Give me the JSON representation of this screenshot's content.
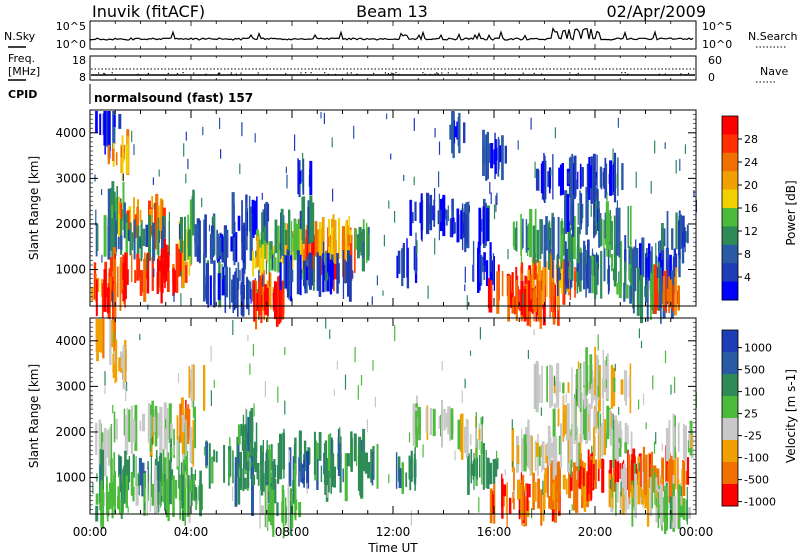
{
  "header": {
    "station": "Inuvik (fitACF)",
    "beam": "Beam 13",
    "date": "02/Apr/2009"
  },
  "top_panel": {
    "left_label": "N.Sky",
    "right_label": "N.Search",
    "left_ticks": [
      "10^5",
      "10^0"
    ],
    "right_ticks": [
      "10^5",
      "10^0"
    ]
  },
  "freq_panel": {
    "left_label_1": "Freq.",
    "left_label_2": "[MHz]",
    "right_label": "Nave",
    "left_ticks": [
      "18",
      "8"
    ],
    "right_ticks": [
      "60",
      "0"
    ]
  },
  "cpid": {
    "label": "CPID",
    "value": "normalsound (fast) 157"
  },
  "chart_data": [
    {
      "type": "heatmap",
      "title": "",
      "xlabel": "Time UT",
      "ylabel": "Slant Range [km]",
      "x_ticks": [
        "00:00",
        "04:00",
        "08:00",
        "12:00",
        "16:00",
        "20:00",
        "00:00"
      ],
      "y_ticks": [
        "1000",
        "2000",
        "3000",
        "4000"
      ],
      "ylim": [
        200,
        4500
      ],
      "colorbar": {
        "label": "Power [dB]",
        "ticks": [
          "4",
          "8",
          "12",
          "16",
          "20",
          "24",
          "28"
        ],
        "colors": [
          "#0000ff",
          "#1e3cb4",
          "#2a5aa6",
          "#2e8b57",
          "#4cbb3c",
          "#f0d000",
          "#f0a000",
          "#f07000",
          "#ff3000",
          "#ff0000"
        ]
      },
      "blobs": [
        {
          "t": 0.7,
          "r": 4200,
          "dt": 0.5,
          "dr": 80,
          "v": 5
        },
        {
          "t": 1.1,
          "r": 3500,
          "dt": 0.4,
          "dr": 100,
          "v": 20
        },
        {
          "t": 1.0,
          "r": 2200,
          "dt": 0.4,
          "dr": 200,
          "v": 12
        },
        {
          "t": 2.0,
          "r": 2050,
          "dt": 0.9,
          "dr": 120,
          "v": 22
        },
        {
          "t": 0.6,
          "r": 1650,
          "dt": 0.4,
          "dr": 120,
          "v": 12
        },
        {
          "t": 2.0,
          "r": 1650,
          "dt": 1.2,
          "dr": 100,
          "v": 10
        },
        {
          "t": 2.3,
          "r": 950,
          "dt": 1.5,
          "dr": 250,
          "v": 27
        },
        {
          "t": 0.7,
          "r": 650,
          "dt": 0.7,
          "dr": 220,
          "v": 24
        },
        {
          "t": 0.6,
          "r": 400,
          "dt": 0.4,
          "dr": 150,
          "v": 28
        },
        {
          "t": 3.8,
          "r": 1200,
          "dt": 0.2,
          "dr": 600,
          "v": 20
        },
        {
          "t": 3.8,
          "r": 2000,
          "dt": 0.3,
          "dr": 450,
          "v": 14
        },
        {
          "t": 4.5,
          "r": 1700,
          "dt": 0.4,
          "dr": 100,
          "v": 8
        },
        {
          "t": 5.5,
          "r": 1500,
          "dt": 0.8,
          "dr": 80,
          "v": 6
        },
        {
          "t": 6.3,
          "r": 2100,
          "dt": 0.7,
          "dr": 150,
          "v": 6
        },
        {
          "t": 6.5,
          "r": 1600,
          "dt": 0.4,
          "dr": 200,
          "v": 12
        },
        {
          "t": 7.0,
          "r": 1300,
          "dt": 0.6,
          "dr": 200,
          "v": 16
        },
        {
          "t": 8.0,
          "r": 1400,
          "dt": 0.6,
          "dr": 250,
          "v": 20
        },
        {
          "t": 9.0,
          "r": 1300,
          "dt": 0.6,
          "dr": 260,
          "v": 26
        },
        {
          "t": 10.0,
          "r": 1250,
          "dt": 0.5,
          "dr": 220,
          "v": 24
        },
        {
          "t": 9.7,
          "r": 1650,
          "dt": 0.8,
          "dr": 100,
          "v": 20
        },
        {
          "t": 7.8,
          "r": 1700,
          "dt": 0.5,
          "dr": 120,
          "v": 12
        },
        {
          "t": 10.8,
          "r": 1550,
          "dt": 0.4,
          "dr": 150,
          "v": 12
        },
        {
          "t": 5.2,
          "r": 700,
          "dt": 0.8,
          "dr": 180,
          "v": 7
        },
        {
          "t": 6.0,
          "r": 450,
          "dt": 0.7,
          "dr": 100,
          "v": 8
        },
        {
          "t": 7.0,
          "r": 500,
          "dt": 0.6,
          "dr": 200,
          "v": 24
        },
        {
          "t": 7.0,
          "r": 280,
          "dt": 0.6,
          "dr": 80,
          "v": 28
        },
        {
          "t": 9.0,
          "r": 900,
          "dt": 1.5,
          "dr": 100,
          "v": 7
        },
        {
          "t": 8.5,
          "r": 2100,
          "dt": 0.3,
          "dr": 60,
          "v": 8
        },
        {
          "t": 8.5,
          "r": 3000,
          "dt": 0.3,
          "dr": 60,
          "v": 6
        },
        {
          "t": 12.5,
          "r": 1150,
          "dt": 0.4,
          "dr": 150,
          "v": 6
        },
        {
          "t": 13.5,
          "r": 2200,
          "dt": 0.9,
          "dr": 80,
          "v": 6
        },
        {
          "t": 15.0,
          "r": 1950,
          "dt": 0.8,
          "dr": 70,
          "v": 7
        },
        {
          "t": 15.6,
          "r": 1050,
          "dt": 0.5,
          "dr": 150,
          "v": 6
        },
        {
          "t": 16.8,
          "r": 500,
          "dt": 1.1,
          "dr": 230,
          "v": 28
        },
        {
          "t": 17.5,
          "r": 300,
          "dt": 1.0,
          "dr": 100,
          "v": 26
        },
        {
          "t": 18.3,
          "r": 800,
          "dt": 1.0,
          "dr": 220,
          "v": 22
        },
        {
          "t": 19.0,
          "r": 1000,
          "dt": 0.8,
          "dr": 150,
          "v": 10
        },
        {
          "t": 20.8,
          "r": 1050,
          "dt": 1.8,
          "dr": 250,
          "v": 10
        },
        {
          "t": 22.5,
          "r": 1050,
          "dt": 0.8,
          "dr": 120,
          "v": 6
        },
        {
          "t": 22.0,
          "r": 500,
          "dt": 1.2,
          "dr": 180,
          "v": 12
        },
        {
          "t": 22.8,
          "r": 450,
          "dt": 0.5,
          "dr": 120,
          "v": 24
        },
        {
          "t": 18.0,
          "r": 1650,
          "dt": 1.3,
          "dr": 150,
          "v": 12
        },
        {
          "t": 20.7,
          "r": 1850,
          "dt": 0.7,
          "dr": 150,
          "v": 12
        },
        {
          "t": 23.2,
          "r": 1750,
          "dt": 0.6,
          "dr": 100,
          "v": 8
        },
        {
          "t": 19.5,
          "r": 2250,
          "dt": 0.9,
          "dr": 80,
          "v": 8
        },
        {
          "t": 19.3,
          "r": 3000,
          "dt": 1.8,
          "dr": 50,
          "v": 6
        },
        {
          "t": 16.0,
          "r": 3500,
          "dt": 0.5,
          "dr": 60,
          "v": 6
        },
        {
          "t": 14.5,
          "r": 4000,
          "dt": 0.3,
          "dr": 60,
          "v": 6
        }
      ]
    },
    {
      "type": "heatmap",
      "title": "",
      "xlabel": "Time UT",
      "ylabel": "Slant Range [km]",
      "x_ticks": [
        "00:00",
        "04:00",
        "08:00",
        "12:00",
        "16:00",
        "20:00",
        "00:00"
      ],
      "y_ticks": [
        "1000",
        "2000",
        "3000",
        "4000"
      ],
      "ylim": [
        200,
        4500
      ],
      "colorbar": {
        "label": "Velocity [m s-1]",
        "ticks": [
          "1000",
          "500",
          "100",
          "25",
          "-25",
          "-100",
          "-500",
          "-1000"
        ],
        "colors": [
          "#1e3cb4",
          "#2a5aa6",
          "#2e8b57",
          "#4cbb3c",
          "#c8c8c8",
          "#f0a000",
          "#f07000",
          "#ff0000"
        ]
      },
      "blobs": [
        {
          "t": 0.6,
          "r": 4200,
          "dt": 0.4,
          "dr": 80,
          "v": 5
        },
        {
          "t": 1.1,
          "r": 3500,
          "dt": 0.4,
          "dr": 90,
          "v": 5
        },
        {
          "t": 2.0,
          "r": 2100,
          "dt": 1.2,
          "dr": 150,
          "v": 4
        },
        {
          "t": 0.6,
          "r": 1700,
          "dt": 0.4,
          "dr": 150,
          "v": 4
        },
        {
          "t": 1.8,
          "r": 1050,
          "dt": 1.5,
          "dr": 220,
          "v": 2
        },
        {
          "t": 2.5,
          "r": 650,
          "dt": 2.0,
          "dr": 200,
          "v": 3
        },
        {
          "t": 0.6,
          "r": 400,
          "dt": 0.5,
          "dr": 200,
          "v": 3
        },
        {
          "t": 3.5,
          "r": 1400,
          "dt": 0.5,
          "dr": 400,
          "v": 3
        },
        {
          "t": 3.8,
          "r": 2300,
          "dt": 0.3,
          "dr": 150,
          "v": 6
        },
        {
          "t": 3.8,
          "r": 1900,
          "dt": 0.4,
          "dr": 200,
          "v": 4
        },
        {
          "t": 4.2,
          "r": 3000,
          "dt": 0.3,
          "dr": 100,
          "v": 4
        },
        {
          "t": 5.5,
          "r": 1400,
          "dt": 1.0,
          "dr": 250,
          "v": 2
        },
        {
          "t": 6.2,
          "r": 2000,
          "dt": 0.5,
          "dr": 150,
          "v": 2
        },
        {
          "t": 6.5,
          "r": 900,
          "dt": 0.8,
          "dr": 250,
          "v": 2
        },
        {
          "t": 8.0,
          "r": 1250,
          "dt": 1.5,
          "dr": 350,
          "v": 2
        },
        {
          "t": 9.8,
          "r": 1350,
          "dt": 1.0,
          "dr": 350,
          "v": 2
        },
        {
          "t": 7.5,
          "r": 300,
          "dt": 0.8,
          "dr": 120,
          "v": 3
        },
        {
          "t": 8.5,
          "r": 1100,
          "dt": 0.3,
          "dr": 100,
          "v": 0
        },
        {
          "t": 11.0,
          "r": 1200,
          "dt": 0.4,
          "dr": 200,
          "v": 2
        },
        {
          "t": 12.5,
          "r": 1100,
          "dt": 0.4,
          "dr": 150,
          "v": 2
        },
        {
          "t": 13.5,
          "r": 2200,
          "dt": 0.8,
          "dr": 80,
          "v": 4
        },
        {
          "t": 15.5,
          "r": 1200,
          "dt": 0.6,
          "dr": 150,
          "v": 2
        },
        {
          "t": 15.0,
          "r": 1900,
          "dt": 0.5,
          "dr": 80,
          "v": 4
        },
        {
          "t": 17.2,
          "r": 550,
          "dt": 1.4,
          "dr": 250,
          "v": 6
        },
        {
          "t": 18.8,
          "r": 850,
          "dt": 1.0,
          "dr": 200,
          "v": 6
        },
        {
          "t": 20.5,
          "r": 1050,
          "dt": 1.2,
          "dr": 130,
          "v": 7
        },
        {
          "t": 22.5,
          "r": 1050,
          "dt": 1.2,
          "dr": 130,
          "v": 6
        },
        {
          "t": 22.0,
          "r": 600,
          "dt": 1.5,
          "dr": 200,
          "v": 4
        },
        {
          "t": 23.0,
          "r": 300,
          "dt": 0.7,
          "dr": 100,
          "v": 3
        },
        {
          "t": 18.0,
          "r": 1600,
          "dt": 1.5,
          "dr": 150,
          "v": 4
        },
        {
          "t": 20.7,
          "r": 1800,
          "dt": 0.8,
          "dr": 150,
          "v": 4
        },
        {
          "t": 23.3,
          "r": 1800,
          "dt": 0.5,
          "dr": 120,
          "v": 4
        },
        {
          "t": 19.5,
          "r": 2250,
          "dt": 1.2,
          "dr": 80,
          "v": 4
        },
        {
          "t": 19.5,
          "r": 3000,
          "dt": 2.0,
          "dr": 60,
          "v": 4
        },
        {
          "t": 20.0,
          "r": 3300,
          "dt": 0.5,
          "dr": 60,
          "v": 4
        }
      ]
    }
  ]
}
